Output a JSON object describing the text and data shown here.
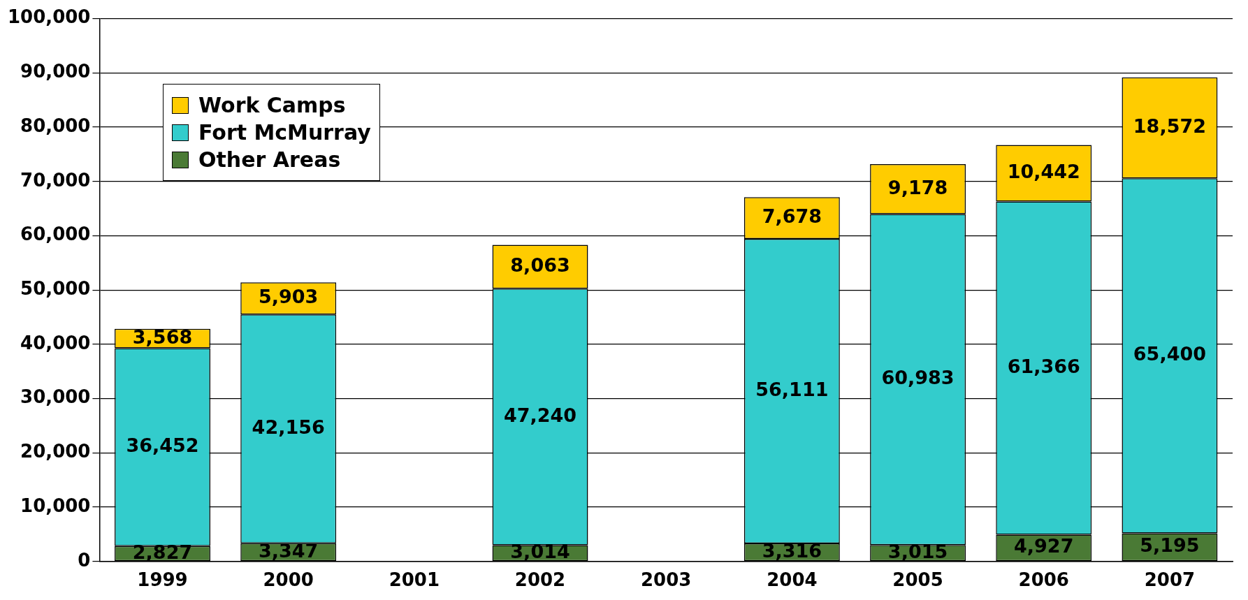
{
  "chart_data": {
    "type": "bar",
    "stacked": true,
    "categories": [
      "1999",
      "2000",
      "2001",
      "2002",
      "2003",
      "2004",
      "2005",
      "2006",
      "2007"
    ],
    "series": [
      {
        "name": "Other Areas",
        "color": "#4a7a35",
        "values": [
          2827,
          3347,
          null,
          3014,
          null,
          3316,
          3015,
          4927,
          5195
        ],
        "value_labels": [
          "2,827",
          "3,347",
          null,
          "3,014",
          null,
          "3,316",
          "3,015",
          "4,927",
          "5,195"
        ]
      },
      {
        "name": "Fort McMurray",
        "color": "#33cccc",
        "values": [
          36452,
          42156,
          null,
          47240,
          null,
          56111,
          60983,
          61366,
          65400
        ],
        "value_labels": [
          "36,452",
          "42,156",
          null,
          "47,240",
          null,
          "56,111",
          "60,983",
          "61,366",
          "65,400"
        ]
      },
      {
        "name": "Work Camps",
        "color": "#ffcc00",
        "values": [
          3568,
          5903,
          null,
          8063,
          null,
          7678,
          9178,
          10442,
          18572
        ],
        "value_labels": [
          "3,568",
          "5,903",
          null,
          "8,063",
          null,
          "7,678",
          "9,178",
          "10,442",
          "18,572"
        ]
      }
    ],
    "ylim": [
      0,
      100000
    ],
    "yticks": [
      0,
      {
        "value": 10000,
        "label": "10,000"
      },
      {
        "value": 20000,
        "label": "20,000"
      },
      {
        "value": 30000,
        "label": "30,000"
      },
      {
        "value": 40000,
        "label": "40,000"
      },
      {
        "value": 50000,
        "label": "50,000"
      },
      {
        "value": 60000,
        "label": "60,000"
      },
      {
        "value": 70000,
        "label": "70,000"
      },
      {
        "value": 80000,
        "label": "80,000"
      },
      {
        "value": 90000,
        "label": "90,000"
      },
      {
        "value": 100000,
        "label": "100,000"
      }
    ],
    "grid": "y",
    "legend": "top left"
  }
}
